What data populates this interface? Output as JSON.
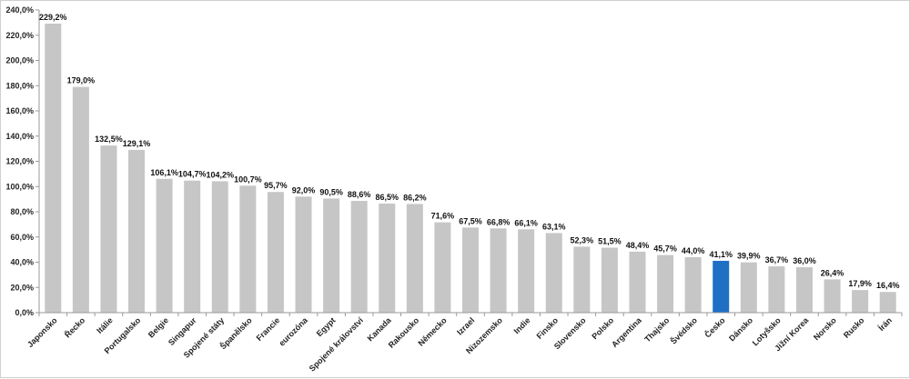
{
  "chart_data": {
    "type": "bar",
    "title": "",
    "xlabel": "",
    "ylabel": "",
    "ylim": [
      0,
      240
    ],
    "y_ticks": [
      "0,0%",
      "20,0%",
      "40,0%",
      "60,0%",
      "80,0%",
      "100,0%",
      "120,0%",
      "140,0%",
      "160,0%",
      "180,0%",
      "200,0%",
      "220,0%",
      "240,0%"
    ],
    "grid": false,
    "legend": "none",
    "categories": [
      "Japonsko",
      "Řecko",
      "Itálie",
      "Portugalsko",
      "Belgie",
      "Singapur",
      "Spojené státy",
      "Španělsko",
      "Francie",
      "eurozóna",
      "Egypt",
      "Spojené království",
      "Kanada",
      "Rakousko",
      "Německo",
      "Izrael",
      "Nizozemsko",
      "Indie",
      "Finsko",
      "Slovensko",
      "Polsko",
      "Argentina",
      "Thajsko",
      "Švédsko",
      "Česko",
      "Dánsko",
      "Lotyšsko",
      "Jižní Korea",
      "Norsko",
      "Rusko",
      "Írán"
    ],
    "values": [
      229.2,
      179.0,
      132.5,
      129.1,
      106.1,
      104.7,
      104.2,
      100.7,
      95.7,
      92.0,
      90.5,
      88.6,
      86.5,
      86.2,
      71.6,
      67.5,
      66.8,
      66.1,
      63.1,
      52.3,
      51.5,
      48.4,
      45.7,
      44.0,
      41.1,
      39.9,
      36.7,
      36.0,
      26.4,
      17.9,
      16.4
    ],
    "data_labels": [
      "229,2%",
      "179,0%",
      "132,5%",
      "129,1%",
      "106,1%",
      "104,7%",
      "104,2%",
      "100,7%",
      "95,7%",
      "92,0%",
      "90,5%",
      "88,6%",
      "86,5%",
      "86,2%",
      "71,6%",
      "67,5%",
      "66,8%",
      "66,1%",
      "63,1%",
      "52,3%",
      "51,5%",
      "48,4%",
      "45,7%",
      "44,0%",
      "41,1%",
      "39,9%",
      "36,7%",
      "36,0%",
      "26,4%",
      "17,9%",
      "16,4%"
    ],
    "highlight_category": "Česko",
    "colors": {
      "bar": "#c6c6c6",
      "highlight": "#1f6fc4",
      "axis": "#9a9a9a"
    }
  }
}
